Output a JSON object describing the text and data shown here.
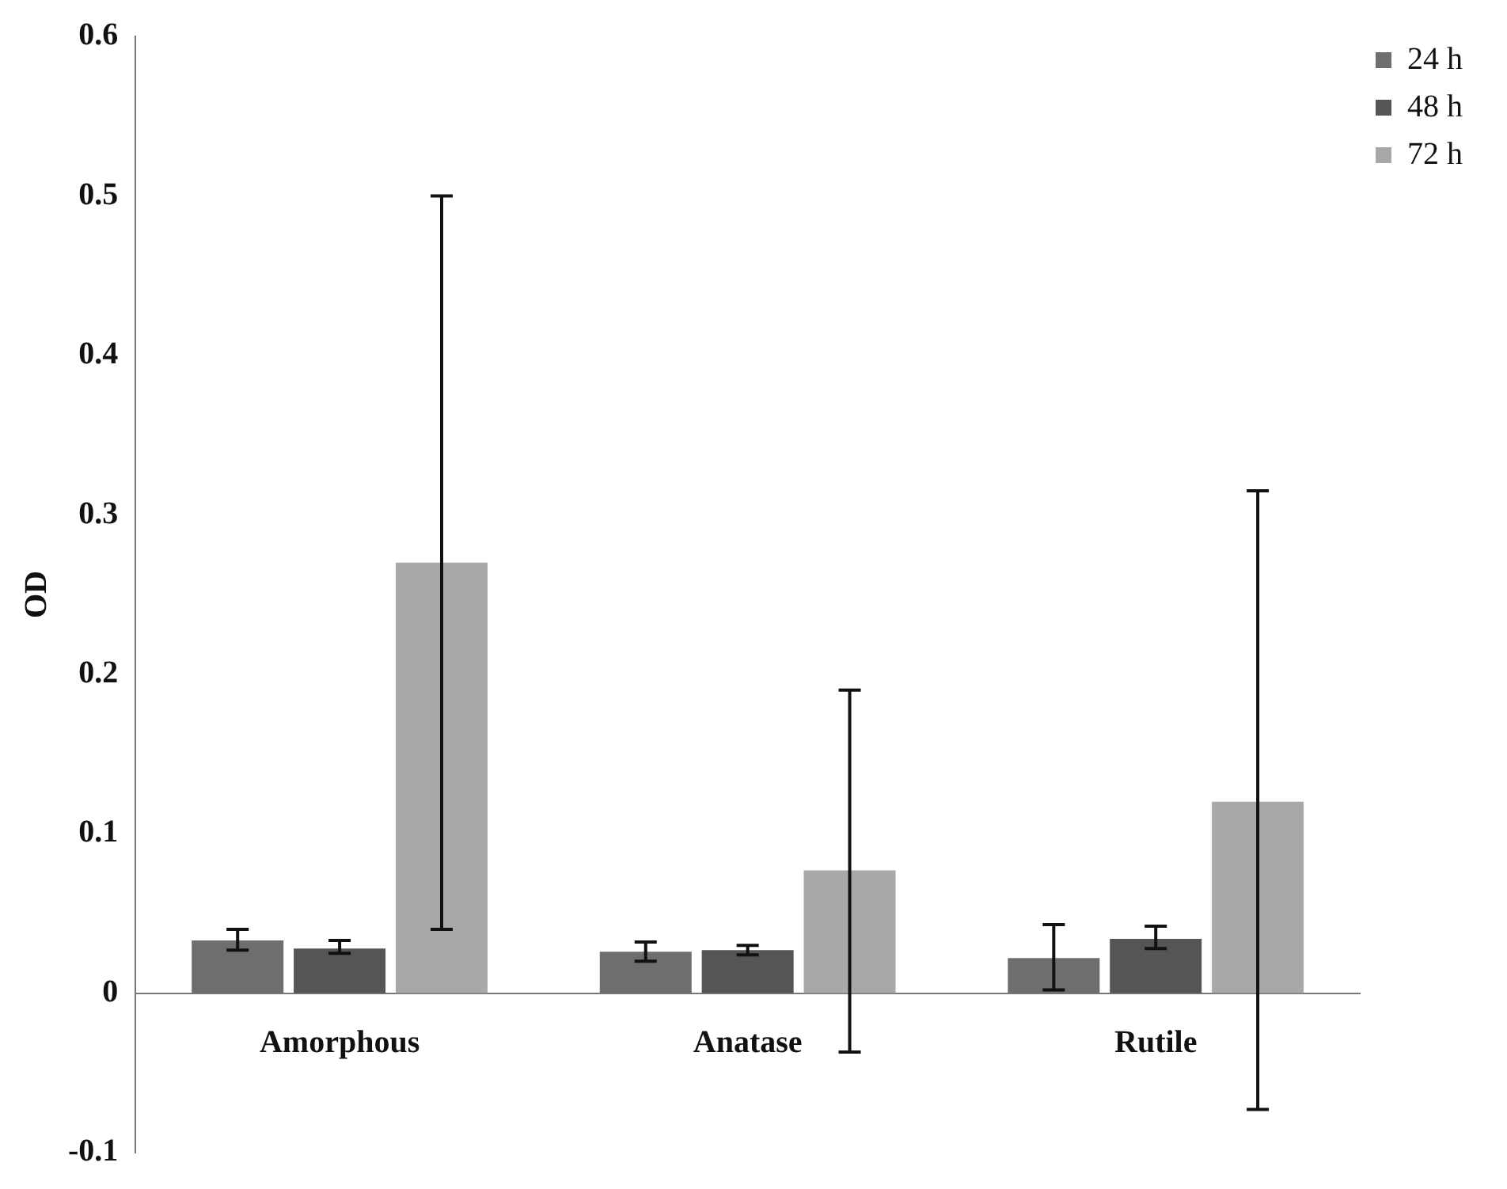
{
  "chart_data": {
    "type": "bar",
    "ylabel": "OD",
    "categories": [
      "Amorphous",
      "Anatase",
      "Rutile"
    ],
    "series": [
      {
        "name": "24 h",
        "color": "#6e6e6e",
        "values": [
          0.033,
          0.026,
          0.022
        ],
        "errors": [
          [
            0.027,
            0.04
          ],
          [
            0.02,
            0.032
          ],
          [
            0.002,
            0.043
          ]
        ]
      },
      {
        "name": "48 h",
        "color": "#555555",
        "values": [
          0.028,
          0.027,
          0.034
        ],
        "errors": [
          [
            0.025,
            0.033
          ],
          [
            0.024,
            0.03
          ],
          [
            0.028,
            0.042
          ]
        ]
      },
      {
        "name": "72 h",
        "color": "#a8a8a8",
        "values": [
          0.27,
          0.077,
          0.12
        ],
        "errors": [
          [
            0.04,
            0.5
          ],
          [
            -0.037,
            0.19
          ],
          [
            -0.073,
            0.315
          ]
        ]
      }
    ],
    "ylim": [
      -0.1,
      0.6
    ],
    "yticks": [
      -0.1,
      0,
      0.1,
      0.2,
      0.3,
      0.4,
      0.5,
      0.6
    ],
    "grid": false,
    "legend": "top right"
  }
}
